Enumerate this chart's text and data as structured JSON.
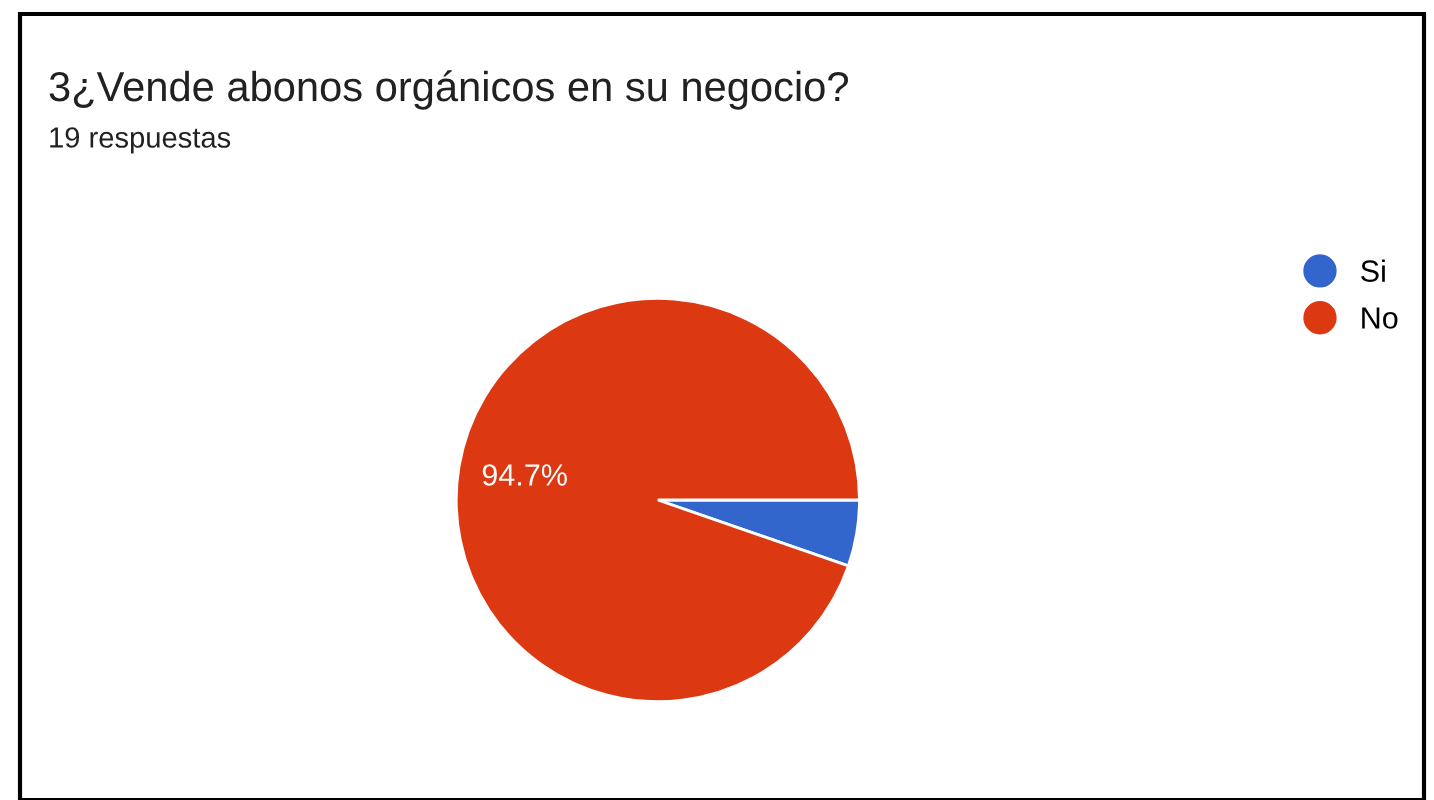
{
  "chart_data": {
    "type": "pie",
    "title": "3¿Vende abonos orgánicos en su negocio?",
    "subtitle": "19 respuestas",
    "categories": [
      "Si",
      "No"
    ],
    "values": [
      5.3,
      94.7
    ],
    "colors": [
      "#3366cc",
      "#dc3912"
    ],
    "value_labels": [
      null,
      "94.7%"
    ],
    "legend": "top right"
  }
}
